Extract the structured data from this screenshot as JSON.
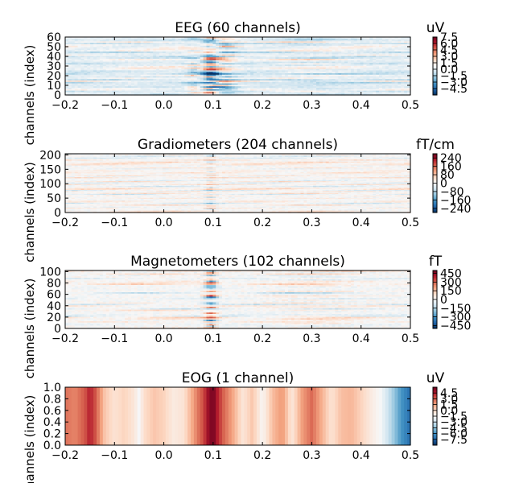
{
  "chart_data": [
    {
      "type": "heatmap",
      "title": "EEG (60 channels)",
      "xlabel": "",
      "ylabel": "channels (index)",
      "xlim": [
        -0.2,
        0.5
      ],
      "ylim": [
        0,
        60
      ],
      "xticks": [
        "−0.2",
        "−0.1",
        "0.0",
        "0.1",
        "0.2",
        "0.3",
        "0.4",
        "0.5"
      ],
      "yticks": [
        "0",
        "10",
        "20",
        "30",
        "40",
        "50",
        "60"
      ],
      "colorbar": {
        "unit": "uV",
        "range": [
          -6,
          7.5
        ],
        "ticks": [
          "7.5",
          "6.0",
          "4.5",
          "3.0",
          "1.5",
          "0.0",
          "−1.5",
          "−3.0",
          "−4.5"
        ]
      },
      "components": [
        {
          "t": 0.095,
          "amp": -5.5,
          "width": 0.018
        },
        {
          "t": 0.12,
          "amp": 3.5,
          "width": 0.03
        },
        {
          "t": 0.06,
          "amp": -2.0,
          "width": 0.015
        },
        {
          "t": 0.3,
          "amp": -1.2,
          "width": 0.08
        }
      ]
    },
    {
      "type": "heatmap",
      "title": "Gradiometers (204 channels)",
      "xlabel": "",
      "ylabel": "channels (index)",
      "xlim": [
        -0.2,
        0.5
      ],
      "ylim": [
        0,
        204
      ],
      "xticks": [
        "−0.2",
        "−0.1",
        "0.0",
        "0.1",
        "0.2",
        "0.3",
        "0.4",
        "0.5"
      ],
      "yticks": [
        "0",
        "50",
        "100",
        "150",
        "200"
      ],
      "colorbar": {
        "unit": "fT/cm",
        "range": [
          -280,
          280
        ],
        "ticks": [
          "240",
          "160",
          "80",
          "0",
          "−80",
          "−160",
          "−240"
        ]
      },
      "components": [
        {
          "t": 0.095,
          "amp": 80,
          "width": 0.012
        }
      ]
    },
    {
      "type": "heatmap",
      "title": "Magnetometers (102 channels)",
      "xlabel": "",
      "ylabel": "channels (index)",
      "xlim": [
        -0.2,
        0.5
      ],
      "ylim": [
        0,
        102
      ],
      "xticks": [
        "−0.2",
        "−0.1",
        "0.0",
        "0.1",
        "0.2",
        "0.3",
        "0.4",
        "0.5"
      ],
      "yticks": [
        "0",
        "20",
        "40",
        "60",
        "80",
        "100"
      ],
      "colorbar": {
        "unit": "fT",
        "range": [
          -500,
          500
        ],
        "ticks": [
          "450",
          "300",
          "150",
          "0",
          "−150",
          "−300",
          "−450"
        ]
      },
      "components": [
        {
          "t": 0.095,
          "amp": 400,
          "width": 0.014
        },
        {
          "t": 0.3,
          "amp": -60,
          "width": 0.1
        }
      ]
    },
    {
      "type": "heatmap",
      "title": "EOG (1 channel)",
      "xlabel": "",
      "ylabel": "channels (index)",
      "xlim": [
        -0.2,
        0.5
      ],
      "ylim": [
        0.0,
        1.0
      ],
      "xticks": [
        "−0.2",
        "−0.1",
        "0.0",
        "0.1",
        "0.2",
        "0.3",
        "0.4",
        "0.5"
      ],
      "yticks": [
        "0.0",
        "0.2",
        "0.4",
        "0.6",
        "0.8",
        "1.0"
      ],
      "colorbar": {
        "unit": "uV",
        "range": [
          -9,
          6
        ],
        "ticks": [
          "4.5",
          "3.0",
          "1.5",
          "0.0",
          "−1.5",
          "−3.0",
          "−4.5",
          "−6.0",
          "−7.5"
        ]
      },
      "trace": {
        "t": [
          -0.2,
          -0.18,
          -0.16,
          -0.15,
          -0.14,
          -0.12,
          -0.1,
          -0.08,
          -0.06,
          -0.05,
          -0.04,
          -0.02,
          0.0,
          0.02,
          0.04,
          0.06,
          0.07,
          0.08,
          0.09,
          0.1,
          0.11,
          0.12,
          0.14,
          0.16,
          0.18,
          0.2,
          0.22,
          0.24,
          0.26,
          0.28,
          0.3,
          0.32,
          0.34,
          0.36,
          0.38,
          0.4,
          0.42,
          0.44,
          0.46,
          0.48,
          0.5
        ],
        "v": [
          2.6,
          2.2,
          3.2,
          4.4,
          3.4,
          0.6,
          -0.4,
          0.2,
          -0.6,
          -1.6,
          -0.2,
          0.6,
          0.2,
          -0.8,
          -0.4,
          1.6,
          2.6,
          3.4,
          5.0,
          5.8,
          4.2,
          3.0,
          1.4,
          -0.5,
          0.6,
          -1.4,
          0.8,
          1.8,
          -0.6,
          1.6,
          2.8,
          1.2,
          -0.4,
          0.8,
          1.0,
          0.2,
          -0.8,
          -1.6,
          -3.6,
          -5.8,
          -7.2
        ]
      }
    }
  ]
}
